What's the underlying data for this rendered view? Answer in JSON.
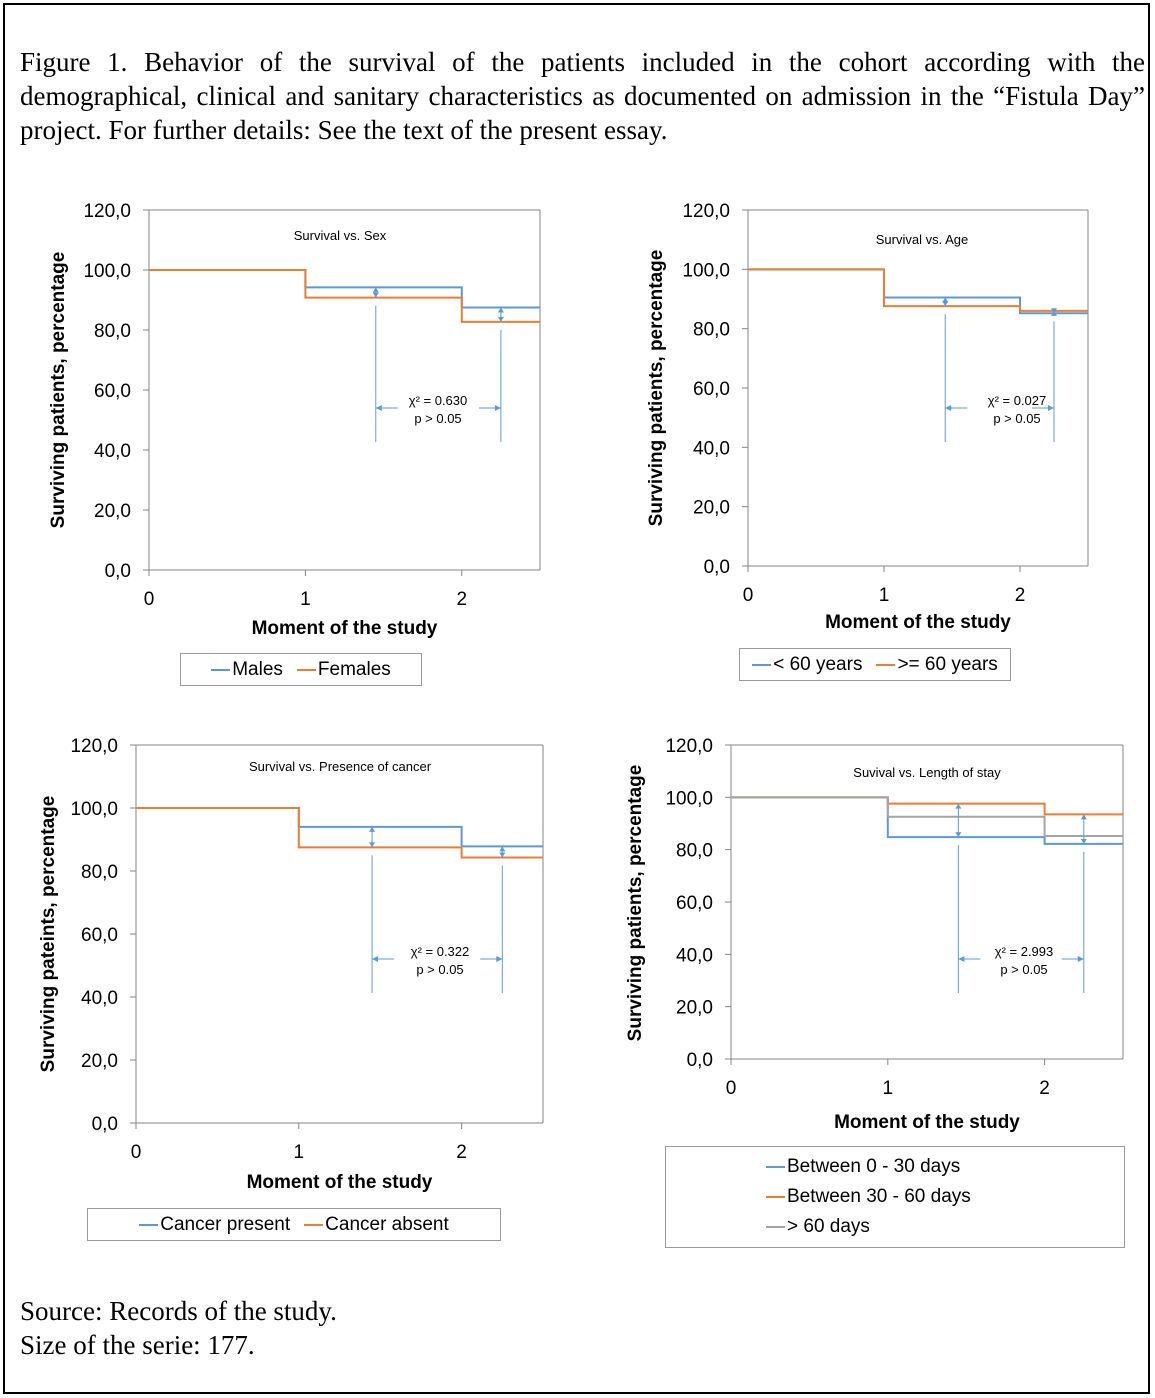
{
  "caption": "Figure 1. Behavior of the survival of the patients included in the cohort according with the demographical, clinical and sanitary characteristics as documented on admission in the “Fistula Day” project. For further details: See the text of the present essay.",
  "source": "Source: Records of the study.",
  "size": "Size of the serie: 177.",
  "colors": {
    "blue": "#5b9bd5",
    "orange": "#ed7d31",
    "gray": "#a5a5a5",
    "axis": "#868686"
  },
  "chart_data": [
    {
      "type": "line",
      "title": "Survival vs. Sex",
      "xlabel": "Moment of the study",
      "ylabel": "Surviving patients, percentage",
      "xticks": [
        "0",
        "1",
        "2"
      ],
      "yticks": [
        "0,0",
        "20,0",
        "40,0",
        "60,0",
        "80,0",
        "100,0",
        "120,0"
      ],
      "xlim": [
        0,
        2.5
      ],
      "ylim": [
        0,
        120
      ],
      "x": [
        0,
        1,
        2,
        2.5
      ],
      "series": [
        {
          "name": "Males",
          "color": "#5b9bd5",
          "values": [
            100,
            94.2,
            87.5,
            87.5
          ]
        },
        {
          "name": "Females",
          "color": "#ed7d31",
          "values": [
            100,
            90.8,
            82.7,
            82.7
          ]
        }
      ],
      "annotation": {
        "stat": "χ² = 0.630",
        "p": "p > 0.05"
      },
      "legend": "bottom"
    },
    {
      "type": "line",
      "title": "Survival vs. Age",
      "xlabel": "Moment of the study",
      "ylabel": "Surviving patients, percentage",
      "xticks": [
        "0",
        "1",
        "2"
      ],
      "yticks": [
        "0,0",
        "20,0",
        "40,0",
        "60,0",
        "80,0",
        "100,0",
        "120,0"
      ],
      "xlim": [
        0,
        2.5
      ],
      "ylim": [
        0,
        120
      ],
      "x": [
        0,
        1,
        2,
        2.5
      ],
      "series": [
        {
          "name": "< 60 years",
          "color": "#5b9bd5",
          "values": [
            100,
            90.5,
            85.2,
            85.2
          ]
        },
        {
          "name": ">= 60 years",
          "color": "#ed7d31",
          "values": [
            100,
            87.6,
            86.0,
            86.0
          ]
        }
      ],
      "annotation": {
        "stat": "χ² = 0.027",
        "p": "p > 0.05"
      },
      "legend": "bottom"
    },
    {
      "type": "line",
      "title": "Survival vs. Presence of cancer",
      "xlabel": "Moment of the study",
      "ylabel": "Surviving pateints, percentage",
      "xticks": [
        "0",
        "1",
        "2"
      ],
      "yticks": [
        "0,0",
        "20,0",
        "40,0",
        "60,0",
        "80,0",
        "100,0",
        "120,0"
      ],
      "xlim": [
        0,
        2.5
      ],
      "ylim": [
        0,
        120
      ],
      "x": [
        0,
        1,
        2,
        2.5
      ],
      "series": [
        {
          "name": "Cancer present",
          "color": "#5b9bd5",
          "values": [
            100,
            94.0,
            87.8,
            87.8
          ]
        },
        {
          "name": "Cancer absent",
          "color": "#ed7d31",
          "values": [
            100,
            87.5,
            84.3,
            84.3
          ]
        }
      ],
      "annotation": {
        "stat": "χ² = 0.322",
        "p": "p > 0.05"
      },
      "legend": "bottom"
    },
    {
      "type": "line",
      "title": "Suvival vs. Length of stay",
      "xlabel": "Moment of the study",
      "ylabel": "Surviving patients, percentage",
      "xticks": [
        "0",
        "1",
        "2"
      ],
      "yticks": [
        "0,0",
        "20,0",
        "40,0",
        "60,0",
        "80,0",
        "100,0",
        "120,0"
      ],
      "xlim": [
        0,
        2.5
      ],
      "ylim": [
        0,
        120
      ],
      "x": [
        0,
        1,
        2,
        2.5
      ],
      "series": [
        {
          "name": "Between 0 - 30 days",
          "color": "#5b9bd5",
          "values": [
            100,
            84.8,
            82.2,
            82.2
          ]
        },
        {
          "name": "Between 30 - 60 days",
          "color": "#ed7d31",
          "values": [
            100,
            97.6,
            93.5,
            93.5
          ]
        },
        {
          "name": "> 60 days",
          "color": "#a5a5a5",
          "values": [
            100,
            92.6,
            85.2,
            85.2
          ]
        }
      ],
      "annotation": {
        "stat": "χ² = 2.993",
        "p": "p > 0.05"
      },
      "legend": "bottom"
    }
  ]
}
